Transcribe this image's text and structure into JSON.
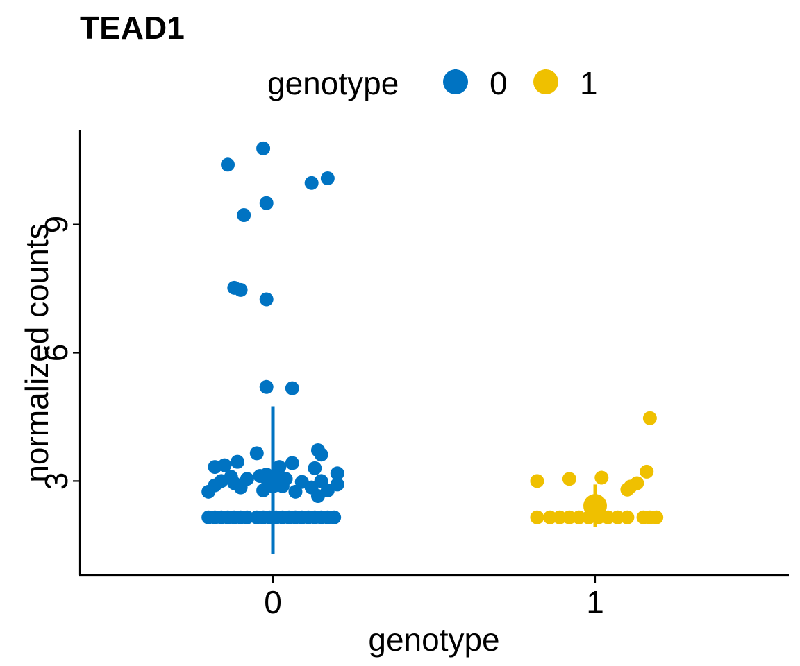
{
  "chart_data": {
    "type": "scatter",
    "title": "TEAD1",
    "xlabel": "genotype",
    "ylabel": "normalized counts",
    "categories": [
      "0",
      "1"
    ],
    "x_tick_labels": [
      "0",
      "1"
    ],
    "y_ticks": [
      3,
      6,
      9
    ],
    "y_tick_labels": [
      "3",
      "6",
      "9"
    ],
    "ylim": [
      0.8,
      11.2
    ],
    "grid": false,
    "legend": {
      "title": "genotype",
      "position": "top",
      "entries": [
        {
          "label": "0",
          "color": "#0073C2"
        },
        {
          "label": "1",
          "color": "#EFC000"
        }
      ]
    },
    "series": [
      {
        "name": "0",
        "color": "#0073C2",
        "summary": {
          "mean": 3.0,
          "low": 1.3,
          "high": 4.75
        },
        "points": [
          [
            -0.14,
            10.4
          ],
          [
            -0.03,
            10.78
          ],
          [
            0.12,
            9.97
          ],
          [
            0.17,
            10.08
          ],
          [
            -0.09,
            9.22
          ],
          [
            -0.02,
            9.5
          ],
          [
            -0.12,
            7.52
          ],
          [
            -0.1,
            7.47
          ],
          [
            -0.02,
            7.25
          ],
          [
            -0.02,
            5.2
          ],
          [
            0.06,
            5.17
          ],
          [
            -0.05,
            3.65
          ],
          [
            0.14,
            3.72
          ],
          [
            0.15,
            3.62
          ],
          [
            -0.11,
            3.45
          ],
          [
            0.06,
            3.42
          ],
          [
            -0.15,
            3.37
          ],
          [
            -0.18,
            3.33
          ],
          [
            0.13,
            3.3
          ],
          [
            0.02,
            3.33
          ],
          [
            -0.13,
            3.1
          ],
          [
            -0.02,
            3.15
          ],
          [
            0.2,
            3.18
          ],
          [
            -0.08,
            3.05
          ],
          [
            -0.04,
            3.12
          ],
          [
            0.04,
            3.05
          ],
          [
            -0.16,
            3.0
          ],
          [
            -0.12,
            2.95
          ],
          [
            0.0,
            3.0
          ],
          [
            0.09,
            2.98
          ],
          [
            0.15,
            3.0
          ],
          [
            -0.18,
            2.9
          ],
          [
            -0.1,
            2.85
          ],
          [
            0.03,
            2.88
          ],
          [
            0.12,
            2.85
          ],
          [
            0.2,
            2.92
          ],
          [
            -0.2,
            2.75
          ],
          [
            0.07,
            2.75
          ],
          [
            0.17,
            2.78
          ],
          [
            -0.03,
            2.78
          ],
          [
            0.14,
            2.65
          ],
          [
            -0.2,
            2.15
          ],
          [
            -0.18,
            2.15
          ],
          [
            -0.16,
            2.15
          ],
          [
            -0.14,
            2.15
          ],
          [
            -0.12,
            2.15
          ],
          [
            -0.1,
            2.15
          ],
          [
            -0.08,
            2.15
          ],
          [
            -0.05,
            2.15
          ],
          [
            -0.03,
            2.15
          ],
          [
            -0.01,
            2.15
          ],
          [
            0.01,
            2.15
          ],
          [
            0.03,
            2.15
          ],
          [
            0.05,
            2.15
          ],
          [
            0.07,
            2.15
          ],
          [
            0.09,
            2.15
          ],
          [
            0.11,
            2.15
          ],
          [
            0.13,
            2.15
          ],
          [
            0.15,
            2.15
          ],
          [
            0.17,
            2.15
          ],
          [
            0.19,
            2.15
          ]
        ]
      },
      {
        "name": "1",
        "color": "#EFC000",
        "summary": {
          "mean": 2.42,
          "low": 1.92,
          "high": 2.92
        },
        "points": [
          [
            0.17,
            4.47
          ],
          [
            0.16,
            3.22
          ],
          [
            0.02,
            3.08
          ],
          [
            -0.08,
            3.05
          ],
          [
            -0.18,
            3.0
          ],
          [
            0.13,
            2.95
          ],
          [
            0.11,
            2.87
          ],
          [
            0.1,
            2.8
          ],
          [
            -0.18,
            2.15
          ],
          [
            -0.14,
            2.15
          ],
          [
            -0.11,
            2.15
          ],
          [
            -0.08,
            2.15
          ],
          [
            -0.05,
            2.15
          ],
          [
            -0.02,
            2.15
          ],
          [
            0.01,
            2.15
          ],
          [
            0.04,
            2.15
          ],
          [
            0.07,
            2.15
          ],
          [
            0.1,
            2.15
          ],
          [
            0.15,
            2.15
          ],
          [
            0.17,
            2.15
          ],
          [
            0.19,
            2.15
          ]
        ]
      }
    ]
  }
}
